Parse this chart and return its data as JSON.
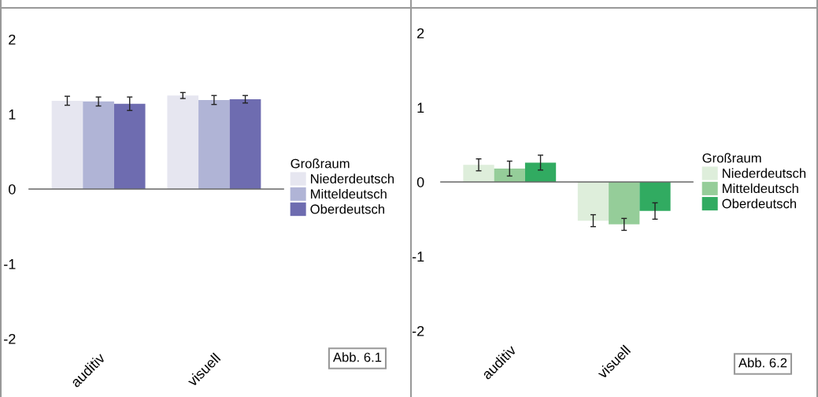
{
  "chart_data": [
    {
      "type": "bar",
      "categories": [
        "auditiv",
        "visuell"
      ],
      "legend_title": "Großraum",
      "legend": "right",
      "ylim": [
        -2,
        2
      ],
      "yticks": [
        -2,
        -1,
        0,
        1,
        2
      ],
      "annotations": [
        "Abb. 6.1"
      ],
      "series": [
        {
          "name": "Niederdeutsch",
          "color": "#e6e6f0",
          "values": [
            1.18,
            1.25
          ],
          "errors": [
            0.06,
            0.04
          ]
        },
        {
          "name": "Mitteldeutsch",
          "color": "#b0b4d6",
          "values": [
            1.17,
            1.19
          ],
          "errors": [
            0.06,
            0.06
          ]
        },
        {
          "name": "Oberdeutsch",
          "color": "#6e6cb0",
          "values": [
            1.14,
            1.2
          ],
          "errors": [
            0.09,
            0.05
          ]
        }
      ]
    },
    {
      "type": "bar",
      "categories": [
        "auditiv",
        "visuell"
      ],
      "legend_title": "Großraum",
      "legend": "right",
      "ylim": [
        -2,
        2
      ],
      "yticks": [
        -2,
        -1,
        0,
        1,
        2
      ],
      "annotations": [
        "Abb. 6.2"
      ],
      "series": [
        {
          "name": "Niederdeutsch",
          "color": "#deeedb",
          "values": [
            0.23,
            -0.52
          ],
          "errors": [
            0.08,
            0.08
          ]
        },
        {
          "name": "Mitteldeutsch",
          "color": "#95cd99",
          "values": [
            0.18,
            -0.57
          ],
          "errors": [
            0.1,
            0.08
          ]
        },
        {
          "name": "Oberdeutsch",
          "color": "#31ab61",
          "values": [
            0.26,
            -0.39
          ],
          "errors": [
            0.1,
            0.11
          ]
        }
      ]
    }
  ]
}
